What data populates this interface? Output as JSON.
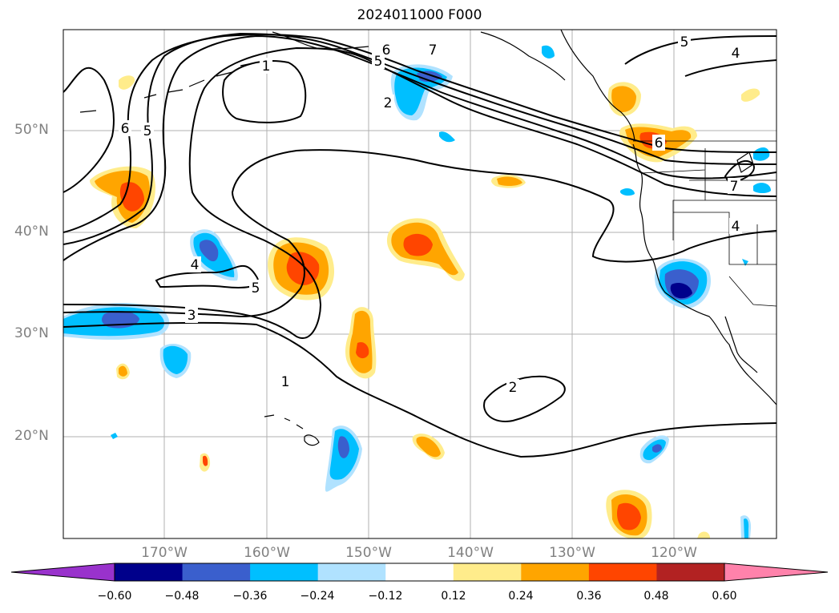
{
  "title": "2024011000 F000",
  "latitude_labels": [
    "50°N",
    "40°N",
    "30°N",
    "20°N"
  ],
  "longitude_labels": [
    "170°W",
    "160°W",
    "150°W",
    "140°W",
    "130°W",
    "120°W"
  ],
  "contour_labels": [
    "1",
    "2",
    "3",
    "4",
    "5",
    "6",
    "7"
  ],
  "colorbar": {
    "ticks": [
      "−0.60",
      "−0.48",
      "−0.36",
      "−0.24",
      "−0.12",
      "0.12",
      "0.24",
      "0.36",
      "0.48",
      "0.60"
    ],
    "colors": [
      "#9932cc",
      "#00008b",
      "#3a5fcd",
      "#00bfff",
      "#b0e2ff",
      "#ffffff",
      "#ffec8b",
      "#ffa500",
      "#ff4500",
      "#b22222",
      "#ff82ab"
    ]
  }
}
